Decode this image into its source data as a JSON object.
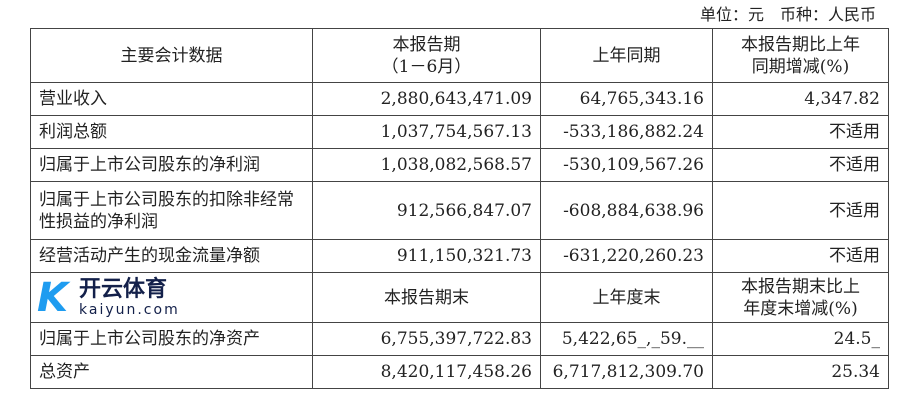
{
  "unit_line": "单位：元　币种：人民币",
  "header": {
    "col0": "主要会计数据",
    "col1a": "本报告期",
    "col1b": "（1－6月）",
    "col2": "上年同期",
    "col3a": "本报告期比上年",
    "col3b": "同期增减(%)"
  },
  "rows": [
    {
      "label": "营业收入",
      "current": "2,880,643,471.09",
      "prior": "64,765,343.16",
      "change": "4,347.82"
    },
    {
      "label": "利润总额",
      "current": "1,037,754,567.13",
      "prior": "-533,186,882.24",
      "change": "不适用"
    },
    {
      "label": "归属于上市公司股东的净利润",
      "current": "1,038,082,568.57",
      "prior": "-530,109,567.26",
      "change": "不适用"
    },
    {
      "label": "归属于上市公司股东的扣除非经常性损益的净利润",
      "current": "912,566,847.07",
      "prior": "-608,884,638.96",
      "change": "不适用"
    },
    {
      "label": "经营活动产生的现金流量净额",
      "current": "911,150,321.73",
      "prior": "-631,220,260.23",
      "change": "不适用"
    }
  ],
  "header2": {
    "col1": "本报告期末",
    "col2": "上年度末",
    "col3a": "本报告期末比上",
    "col3b": "年度末增减(%)"
  },
  "rows2": [
    {
      "label": "归属于上市公司股东的净资产",
      "current": "6,755,397,722.83",
      "prior": "5,422,65_,_59.__",
      "change": "24.5_"
    },
    {
      "label": "总资产",
      "current": "8,420,117,458.26",
      "prior": "6,717,812,309.70",
      "change": "25.34"
    }
  ],
  "watermark": {
    "cn": "开云体育",
    "en": "kaiyun.com"
  }
}
